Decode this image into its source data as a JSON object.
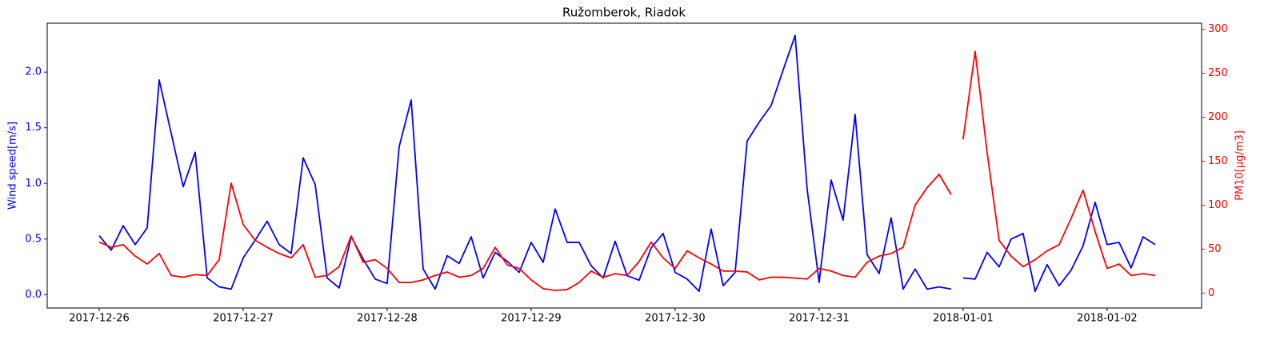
{
  "chart_data": {
    "type": "line",
    "title": "Ružomberok, Riadok",
    "ylabel": "Wind speed[m/s]",
    "y2label": "PM10[μg/m3]",
    "x": [
      "2017-12-26T00:00",
      "2017-12-26T02:00",
      "2017-12-26T04:00",
      "2017-12-26T06:00",
      "2017-12-26T08:00",
      "2017-12-26T10:00",
      "2017-12-26T12:00",
      "2017-12-26T14:00",
      "2017-12-26T16:00",
      "2017-12-26T18:00",
      "2017-12-26T20:00",
      "2017-12-26T22:00",
      "2017-12-27T00:00",
      "2017-12-27T02:00",
      "2017-12-27T04:00",
      "2017-12-27T06:00",
      "2017-12-27T08:00",
      "2017-12-27T10:00",
      "2017-12-27T12:00",
      "2017-12-27T14:00",
      "2017-12-27T16:00",
      "2017-12-27T18:00",
      "2017-12-27T20:00",
      "2017-12-27T22:00",
      "2017-12-28T00:00",
      "2017-12-28T02:00",
      "2017-12-28T04:00",
      "2017-12-28T06:00",
      "2017-12-28T08:00",
      "2017-12-28T10:00",
      "2017-12-28T12:00",
      "2017-12-28T14:00",
      "2017-12-28T16:00",
      "2017-12-28T18:00",
      "2017-12-28T20:00",
      "2017-12-28T22:00",
      "2017-12-29T00:00",
      "2017-12-29T02:00",
      "2017-12-29T04:00",
      "2017-12-29T06:00",
      "2017-12-29T08:00",
      "2017-12-29T10:00",
      "2017-12-29T12:00",
      "2017-12-29T14:00",
      "2017-12-29T16:00",
      "2017-12-29T18:00",
      "2017-12-29T20:00",
      "2017-12-29T22:00",
      "2017-12-30T00:00",
      "2017-12-30T02:00",
      "2017-12-30T04:00",
      "2017-12-30T06:00",
      "2017-12-30T08:00",
      "2017-12-30T10:00",
      "2017-12-30T12:00",
      "2017-12-30T14:00",
      "2017-12-30T16:00",
      "2017-12-30T18:00",
      "2017-12-30T20:00",
      "2017-12-30T22:00",
      "2017-12-31T00:00",
      "2017-12-31T02:00",
      "2017-12-31T04:00",
      "2017-12-31T06:00",
      "2017-12-31T08:00",
      "2017-12-31T10:00",
      "2017-12-31T12:00",
      "2017-12-31T14:00",
      "2017-12-31T16:00",
      "2017-12-31T18:00",
      "2017-12-31T20:00",
      "2017-12-31T22:00",
      "2017-12-31T23:00",
      "2018-01-01T00:00",
      "2018-01-01T02:00",
      "2018-01-01T04:00",
      "2018-01-01T06:00",
      "2018-01-01T08:00",
      "2018-01-01T10:00",
      "2018-01-01T12:00",
      "2018-01-01T14:00",
      "2018-01-01T16:00",
      "2018-01-01T18:00",
      "2018-01-01T20:00",
      "2018-01-01T22:00",
      "2018-01-02T00:00",
      "2018-01-02T02:00",
      "2018-01-02T04:00",
      "2018-01-02T06:00",
      "2018-01-02T08:00"
    ],
    "series": [
      {
        "color": "#0000ff",
        "axis": "y",
        "values": [
          0.53,
          0.4,
          0.62,
          0.45,
          0.6,
          1.93,
          1.45,
          0.97,
          1.28,
          0.15,
          0.07,
          0.05,
          0.33,
          0.49,
          0.66,
          0.45,
          0.37,
          1.23,
          0.99,
          0.15,
          0.06,
          0.52,
          0.32,
          0.14,
          0.1,
          1.33,
          1.75,
          0.23,
          0.05,
          0.35,
          0.28,
          0.52,
          0.15,
          0.38,
          0.3,
          0.2,
          0.47,
          0.29,
          0.77,
          0.47,
          0.47,
          0.26,
          0.15,
          0.48,
          0.17,
          0.13,
          0.42,
          0.55,
          0.2,
          0.14,
          0.03,
          0.59,
          0.08,
          0.2,
          1.38,
          1.55,
          1.7,
          2.02,
          2.33,
          0.95,
          0.11,
          1.03,
          0.67,
          1.62,
          0.36,
          0.19,
          0.69,
          0.05,
          0.23,
          0.05,
          0.07,
          0.05,
          null,
          0.15,
          0.14,
          0.38,
          0.25,
          0.5,
          0.55,
          0.03,
          0.27,
          0.08,
          0.22,
          0.44,
          0.83,
          0.45,
          0.47,
          0.24,
          0.52,
          0.45
        ]
      },
      {
        "color": "#ff0000",
        "axis": "y2",
        "values": [
          58,
          52,
          55,
          42,
          33,
          45,
          20,
          18,
          21,
          20,
          38,
          125,
          78,
          60,
          52,
          45,
          40,
          55,
          18,
          20,
          30,
          65,
          35,
          38,
          28,
          12,
          12,
          15,
          20,
          24,
          18,
          20,
          28,
          52,
          32,
          28,
          15,
          5,
          3,
          4,
          12,
          25,
          18,
          22,
          20,
          36,
          58,
          40,
          28,
          48,
          40,
          33,
          25,
          25,
          24,
          15,
          18,
          18,
          17,
          16,
          28,
          25,
          20,
          18,
          35,
          42,
          45,
          52,
          100,
          120,
          135,
          112,
          null,
          175,
          275,
          160,
          60,
          42,
          30,
          38,
          48,
          55,
          85,
          117,
          70,
          28,
          33,
          20,
          22,
          20
        ]
      }
    ],
    "xlim": [
      "2017-12-25T15:20",
      "2018-01-02T15:45"
    ],
    "xticks": [
      "2017-12-26",
      "2017-12-27",
      "2017-12-28",
      "2017-12-29",
      "2017-12-30",
      "2017-12-31",
      "2018-01-01",
      "2018-01-02"
    ],
    "ylim": [
      -0.12,
      2.44
    ],
    "yticks": [
      {
        "value": 0,
        "label": "0.0"
      },
      0.5,
      {
        "value": 1,
        "label": "1.0"
      },
      1.5,
      {
        "value": 2,
        "label": "2.0"
      }
    ],
    "y2lim": [
      -17,
      307
    ],
    "y2ticks": [
      0,
      50,
      100,
      150,
      200,
      250,
      300
    ],
    "grid": false
  }
}
